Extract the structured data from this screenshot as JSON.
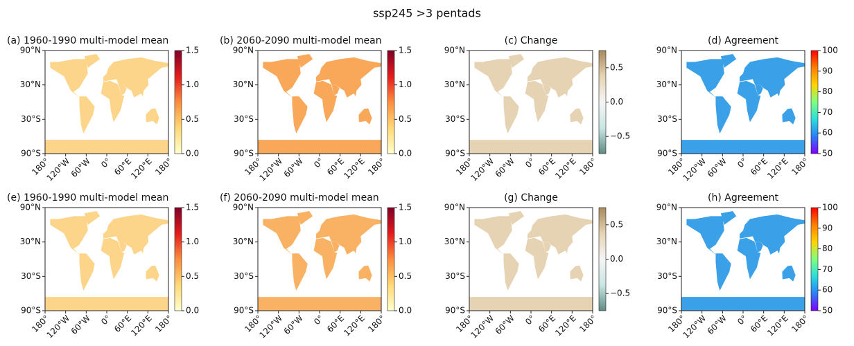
{
  "title": "ssp245 >3 pentads",
  "chart_data": [
    {
      "type": "map",
      "title": "(a) 1960-1990 multi-model mean",
      "land_color": "#fdd58a",
      "colormap": [
        "#ffffcc",
        "#fed976",
        "#fd8d3c",
        "#e31a1c",
        "#800026"
      ],
      "clim": [
        0,
        1.5
      ],
      "cticks": [
        {
          "value": 0,
          "label": "0.0"
        },
        {
          "value": 0.5,
          "label": "0.5"
        },
        {
          "value": 1,
          "label": "1.0"
        },
        {
          "value": 1.5,
          "label": "1.5"
        }
      ],
      "xlim": [
        -180,
        180
      ],
      "xticks": [
        {
          "value": -180,
          "label": "180°"
        },
        {
          "value": -120,
          "label": "120°W"
        },
        {
          "value": -60,
          "label": "60°W"
        },
        {
          "value": 0,
          "label": "0°"
        },
        {
          "value": 60,
          "label": "60°E"
        },
        {
          "value": 120,
          "label": "120°E"
        },
        {
          "value": 180,
          "label": "180°"
        }
      ],
      "ylim": [
        -90,
        90
      ],
      "yticks": [
        {
          "value": 90,
          "label": "90°N"
        },
        {
          "value": 30,
          "label": "30°N"
        },
        {
          "value": -30,
          "label": "30°S"
        },
        {
          "value": -90,
          "label": "90°S"
        }
      ]
    },
    {
      "type": "map",
      "title": "(b) 2060-2090 multi-model mean",
      "land_color": "#f9a85a",
      "colormap": [
        "#ffffcc",
        "#fed976",
        "#fd8d3c",
        "#e31a1c",
        "#800026"
      ],
      "clim": [
        0,
        1.5
      ],
      "cticks": [
        {
          "value": 0,
          "label": "0.0"
        },
        {
          "value": 0.5,
          "label": "0.5"
        },
        {
          "value": 1,
          "label": "1.0"
        },
        {
          "value": 1.5,
          "label": "1.5"
        }
      ],
      "xlim": [
        -180,
        180
      ],
      "xticks": [
        {
          "value": -180,
          "label": "180°"
        },
        {
          "value": -120,
          "label": "120°W"
        },
        {
          "value": -60,
          "label": "60°W"
        },
        {
          "value": 0,
          "label": "0°"
        },
        {
          "value": 60,
          "label": "60°E"
        },
        {
          "value": 120,
          "label": "120°E"
        },
        {
          "value": 180,
          "label": "180°"
        }
      ],
      "ylim": [
        -90,
        90
      ],
      "yticks": [
        {
          "value": 90,
          "label": "90°N"
        },
        {
          "value": 30,
          "label": "30°N"
        },
        {
          "value": -30,
          "label": "30°S"
        },
        {
          "value": -90,
          "label": "90°S"
        }
      ]
    },
    {
      "type": "map",
      "title": "(c) Change",
      "land_color": "#e6d3b3",
      "colormap": [
        "#5e8c84",
        "#c9e6e3",
        "#f5f5f5",
        "#e6d3b3",
        "#a88a5c"
      ],
      "clim": [
        -0.75,
        0.75
      ],
      "cticks": [
        {
          "value": 0.5,
          "label": "0.5"
        },
        {
          "value": 0,
          "label": "0.0"
        },
        {
          "value": -0.5,
          "label": "−0.5"
        }
      ],
      "xlim": [
        -180,
        180
      ],
      "xticks": [
        {
          "value": -180,
          "label": "180°"
        },
        {
          "value": -120,
          "label": "120°W"
        },
        {
          "value": -60,
          "label": "60°W"
        },
        {
          "value": 0,
          "label": "0°"
        },
        {
          "value": 60,
          "label": "60°E"
        },
        {
          "value": 120,
          "label": "120°E"
        },
        {
          "value": 180,
          "label": "180°"
        }
      ],
      "ylim": [
        -90,
        90
      ],
      "yticks": [
        {
          "value": 90,
          "label": "90°N"
        },
        {
          "value": 30,
          "label": "30°N"
        },
        {
          "value": -30,
          "label": "30°S"
        },
        {
          "value": -90,
          "label": "90°S"
        }
      ]
    },
    {
      "type": "map",
      "title": "(d) Agreement",
      "land_color": "#3aa0e8",
      "colormap": [
        "#7f00ff",
        "#2c7ef7",
        "#2adddd",
        "#80ff80",
        "#ffd400",
        "#ff7f00",
        "#ff0000"
      ],
      "clim": [
        50,
        100
      ],
      "cticks": [
        50,
        60,
        70,
        80,
        90,
        100
      ],
      "xlim": [
        -180,
        180
      ],
      "xticks": [
        {
          "value": -180,
          "label": "180°"
        },
        {
          "value": -120,
          "label": "120°W"
        },
        {
          "value": -60,
          "label": "60°W"
        },
        {
          "value": 0,
          "label": "0°"
        },
        {
          "value": 60,
          "label": "60°E"
        },
        {
          "value": 120,
          "label": "120°E"
        },
        {
          "value": 180,
          "label": "180°"
        }
      ],
      "ylim": [
        -90,
        90
      ],
      "yticks": [
        {
          "value": 90,
          "label": "90°N"
        },
        {
          "value": 30,
          "label": "30°N"
        },
        {
          "value": -30,
          "label": "30°S"
        },
        {
          "value": -90,
          "label": "90°S"
        }
      ]
    },
    {
      "type": "map",
      "title": "(e) 1960-1990 multi-model mean",
      "land_color": "#fdd58a",
      "colormap": [
        "#ffffcc",
        "#fed976",
        "#fd8d3c",
        "#e31a1c",
        "#800026"
      ],
      "clim": [
        0,
        1.5
      ],
      "cticks": [
        {
          "value": 0,
          "label": "0.0"
        },
        {
          "value": 0.5,
          "label": "0.5"
        },
        {
          "value": 1,
          "label": "1.0"
        },
        {
          "value": 1.5,
          "label": "1.5"
        }
      ],
      "xlim": [
        -180,
        180
      ],
      "xticks": [
        {
          "value": -180,
          "label": "180°"
        },
        {
          "value": -120,
          "label": "120°W"
        },
        {
          "value": -60,
          "label": "60°W"
        },
        {
          "value": 0,
          "label": "0°"
        },
        {
          "value": 60,
          "label": "60°E"
        },
        {
          "value": 120,
          "label": "120°E"
        },
        {
          "value": 180,
          "label": "180°"
        }
      ],
      "ylim": [
        -90,
        90
      ],
      "yticks": [
        {
          "value": 90,
          "label": "90°N"
        },
        {
          "value": 30,
          "label": "30°N"
        },
        {
          "value": -30,
          "label": "30°S"
        },
        {
          "value": -90,
          "label": "90°S"
        }
      ]
    },
    {
      "type": "map",
      "title": "(f) 2060-2090 multi-model mean",
      "land_color": "#f9b263",
      "colormap": [
        "#ffffcc",
        "#fed976",
        "#fd8d3c",
        "#e31a1c",
        "#800026"
      ],
      "clim": [
        0,
        1.5
      ],
      "cticks": [
        {
          "value": 0,
          "label": "0.0"
        },
        {
          "value": 0.5,
          "label": "0.5"
        },
        {
          "value": 1,
          "label": "1.0"
        },
        {
          "value": 1.5,
          "label": "1.5"
        }
      ],
      "xlim": [
        -180,
        180
      ],
      "xticks": [
        {
          "value": -180,
          "label": "180°"
        },
        {
          "value": -120,
          "label": "120°W"
        },
        {
          "value": -60,
          "label": "60°W"
        },
        {
          "value": 0,
          "label": "0°"
        },
        {
          "value": 60,
          "label": "60°E"
        },
        {
          "value": 120,
          "label": "120°E"
        },
        {
          "value": 180,
          "label": "180°"
        }
      ],
      "ylim": [
        -90,
        90
      ],
      "yticks": [
        {
          "value": 90,
          "label": "90°N"
        },
        {
          "value": 30,
          "label": "30°N"
        },
        {
          "value": -30,
          "label": "30°S"
        },
        {
          "value": -90,
          "label": "90°S"
        }
      ]
    },
    {
      "type": "map",
      "title": "(g) Change",
      "land_color": "#e6d3b3",
      "colormap": [
        "#5e8c84",
        "#c9e6e3",
        "#f5f5f5",
        "#e6d3b3",
        "#a88a5c"
      ],
      "clim": [
        -0.75,
        0.75
      ],
      "cticks": [
        {
          "value": 0.5,
          "label": "0.5"
        },
        {
          "value": 0,
          "label": "0.0"
        },
        {
          "value": -0.5,
          "label": "−0.5"
        }
      ],
      "xlim": [
        -180,
        180
      ],
      "xticks": [
        {
          "value": -180,
          "label": "180°"
        },
        {
          "value": -120,
          "label": "120°W"
        },
        {
          "value": -60,
          "label": "60°W"
        },
        {
          "value": 0,
          "label": "0°"
        },
        {
          "value": 60,
          "label": "60°E"
        },
        {
          "value": 120,
          "label": "120°E"
        },
        {
          "value": 180,
          "label": "180°"
        }
      ],
      "ylim": [
        -90,
        90
      ],
      "yticks": [
        {
          "value": 90,
          "label": "90°N"
        },
        {
          "value": 30,
          "label": "30°N"
        },
        {
          "value": -30,
          "label": "30°S"
        },
        {
          "value": -90,
          "label": "90°S"
        }
      ]
    },
    {
      "type": "map",
      "title": "(h) Agreement",
      "land_color": "#3aa0e8",
      "colormap": [
        "#7f00ff",
        "#2c7ef7",
        "#2adddd",
        "#80ff80",
        "#ffd400",
        "#ff7f00",
        "#ff0000"
      ],
      "clim": [
        50,
        100
      ],
      "cticks": [
        50,
        60,
        70,
        80,
        90,
        100
      ],
      "xlim": [
        -180,
        180
      ],
      "xticks": [
        {
          "value": -180,
          "label": "180°"
        },
        {
          "value": -120,
          "label": "120°W"
        },
        {
          "value": -60,
          "label": "60°W"
        },
        {
          "value": 0,
          "label": "0°"
        },
        {
          "value": 60,
          "label": "60°E"
        },
        {
          "value": 120,
          "label": "120°E"
        },
        {
          "value": 180,
          "label": "180°"
        }
      ],
      "ylim": [
        -90,
        90
      ],
      "yticks": [
        {
          "value": 90,
          "label": "90°N"
        },
        {
          "value": 30,
          "label": "30°N"
        },
        {
          "value": -30,
          "label": "30°S"
        },
        {
          "value": -90,
          "label": "90°S"
        }
      ]
    }
  ]
}
